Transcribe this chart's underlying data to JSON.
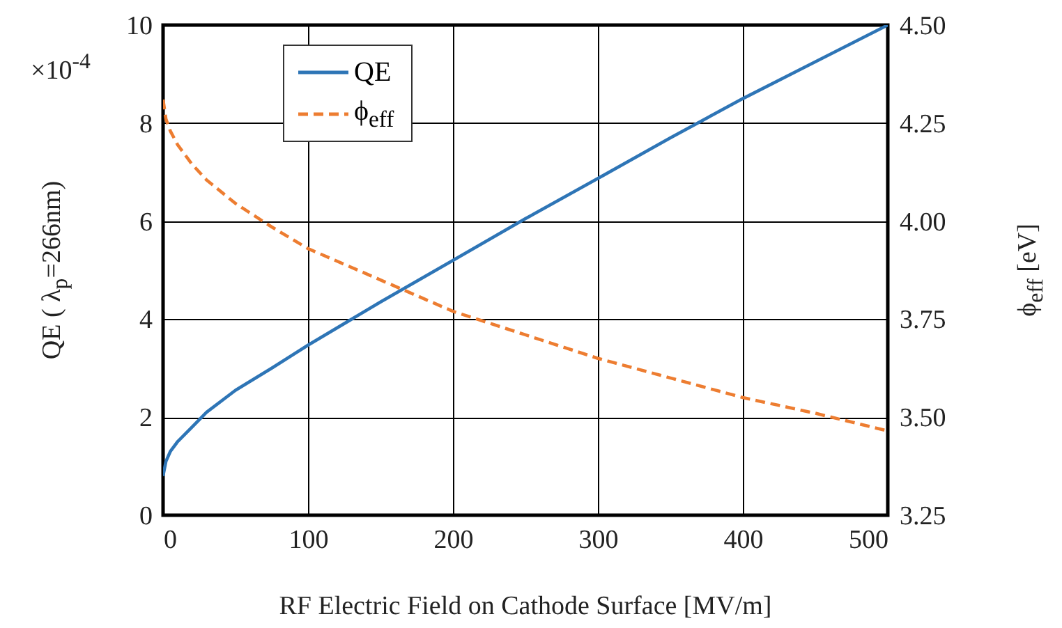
{
  "chart_data": {
    "type": "line",
    "xlabel": "RF Electric Field on Cathode Surface [MV/m]",
    "ylabel": "QE ( λ$_{p}$=266nm)",
    "y2label": "ϕ$_{eff}$ [eV]",
    "annotations": [
      "×10$^{-4}$"
    ],
    "x": [
      0,
      2,
      5,
      10,
      20,
      30,
      50,
      75,
      100,
      150,
      200,
      250,
      300,
      350,
      400,
      450,
      500
    ],
    "series": [
      {
        "name": "QE",
        "color": "#2e75b6",
        "line_style": "solid",
        "values": [
          0.8,
          1.1,
          1.3,
          1.5,
          1.8,
          2.1,
          2.55,
          3.0,
          3.47,
          4.35,
          5.2,
          6.05,
          6.87,
          7.7,
          8.5,
          9.25,
          10.0
        ]
      },
      {
        "name": "ϕ$_{eff}$",
        "color": "#ed7d31",
        "line_style": "dashed",
        "axis": "y2",
        "values": [
          4.31,
          4.26,
          4.23,
          4.195,
          4.145,
          4.105,
          4.045,
          3.985,
          3.93,
          3.85,
          3.77,
          3.71,
          3.65,
          3.6,
          3.55,
          3.51,
          3.465
        ]
      }
    ],
    "xlim": [
      0,
      500
    ],
    "xticks": [
      0,
      100,
      200,
      300,
      400,
      500
    ],
    "ylim": [
      0,
      10
    ],
    "yticks": [
      0,
      2,
      4,
      6,
      8,
      10
    ],
    "y2lim": [
      3.25,
      4.5
    ],
    "y2ticks": [
      3.25,
      {
        "value": 3.5,
        "label": "3.50"
      },
      {
        "value": 3.75,
        "label": "3.75"
      },
      {
        "value": 4,
        "label": "4.00"
      },
      {
        "value": 4.25,
        "label": "4.25"
      },
      {
        "value": 4.5,
        "label": "4.50"
      }
    ],
    "grid": true,
    "legend": "top left"
  }
}
